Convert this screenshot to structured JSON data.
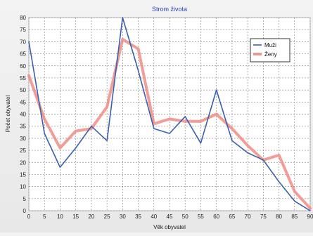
{
  "chart_data": {
    "type": "line",
    "title": "Strom života",
    "xlabel": "Věk obyvatel",
    "ylabel": "Počet obyvatel",
    "x": [
      0,
      5,
      10,
      15,
      20,
      25,
      30,
      35,
      40,
      45,
      50,
      55,
      60,
      65,
      70,
      75,
      80,
      85,
      90
    ],
    "xticks": [
      0,
      5,
      10,
      15,
      20,
      25,
      30,
      35,
      40,
      45,
      50,
      55,
      60,
      65,
      70,
      75,
      80,
      85,
      90
    ],
    "yticks": [
      0,
      5,
      10,
      15,
      20,
      25,
      30,
      35,
      40,
      45,
      50,
      55,
      60,
      65,
      70,
      75,
      80
    ],
    "xlim": [
      0,
      90
    ],
    "ylim": [
      0,
      80
    ],
    "grid": true,
    "legend_position": "top-right",
    "series": [
      {
        "name": "Muži",
        "color": "#3a5fb0",
        "values": [
          70,
          32,
          18,
          26,
          35,
          29,
          80,
          58,
          34,
          32,
          39,
          28,
          50,
          29,
          24,
          21,
          12,
          4,
          0
        ]
      },
      {
        "name": "Ženy",
        "color": "#f08c82",
        "values": [
          56,
          38,
          26,
          33,
          34,
          43,
          71,
          67,
          36,
          38,
          37,
          37,
          40,
          34,
          27,
          21,
          23,
          8,
          1
        ]
      }
    ]
  }
}
